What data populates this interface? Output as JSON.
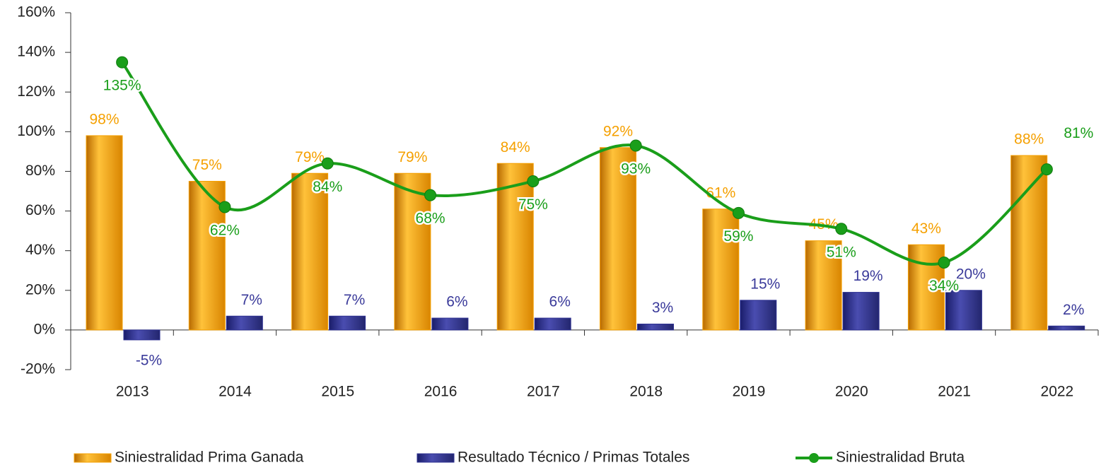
{
  "chart_data": {
    "type": "bar",
    "categories": [
      "2013",
      "2014",
      "2015",
      "2016",
      "2017",
      "2018",
      "2019",
      "2020",
      "2021",
      "2022"
    ],
    "series": [
      {
        "name": "Siniestralidad Prima Ganada",
        "color": "#f5a000",
        "type": "bar",
        "values": [
          98,
          75,
          79,
          79,
          84,
          92,
          61,
          45,
          43,
          88
        ],
        "value_labels": [
          "98%",
          "75%",
          "79%",
          "79%",
          "84%",
          "92%",
          "61%",
          "45%",
          "43%",
          "88%"
        ]
      },
      {
        "name": "Resultado Técnico / Primas Totales",
        "color": "#2e3192",
        "type": "bar",
        "values": [
          -5,
          7,
          7,
          6,
          6,
          3,
          15,
          19,
          20,
          2
        ],
        "value_labels": [
          "-5%",
          "7%",
          "7%",
          "6%",
          "6%",
          "3%",
          "15%",
          "19%",
          "20%",
          "2%"
        ]
      },
      {
        "name": "Siniestralidad Bruta",
        "color": "#1a9e1a",
        "type": "line",
        "values": [
          135,
          62,
          84,
          68,
          75,
          93,
          59,
          51,
          34,
          81
        ],
        "value_labels": [
          "135%",
          "62%",
          "84%",
          "68%",
          "75%",
          "93%",
          "59%",
          "51%",
          "34%",
          "81%"
        ]
      }
    ],
    "ylim": [
      -20,
      160
    ],
    "yticks": [
      {
        "value": -20,
        "label": "-20%"
      },
      {
        "value": 0,
        "label": "0%"
      },
      {
        "value": 20,
        "label": "20%"
      },
      {
        "value": 40,
        "label": "40%"
      },
      {
        "value": 60,
        "label": "60%"
      },
      {
        "value": 80,
        "label": "80%"
      },
      {
        "value": 100,
        "label": "100%"
      },
      {
        "value": 120,
        "label": "120%"
      },
      {
        "value": 140,
        "label": "140%"
      },
      {
        "value": 160,
        "label": "160%"
      }
    ],
    "legend": "bottom"
  }
}
